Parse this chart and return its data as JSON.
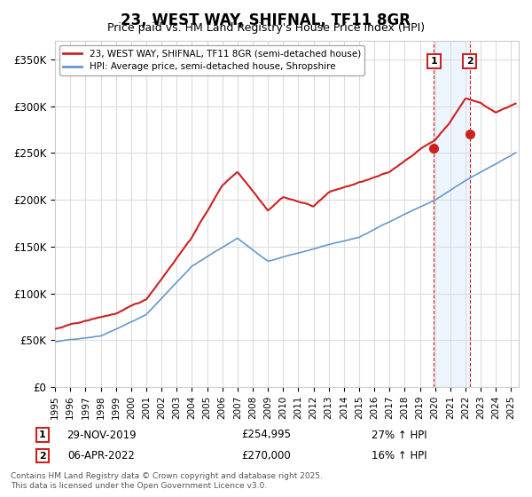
{
  "title": "23, WEST WAY, SHIFNAL, TF11 8GR",
  "subtitle": "Price paid vs. HM Land Registry's House Price Index (HPI)",
  "ylabel_ticks": [
    "£0",
    "£50K",
    "£100K",
    "£150K",
    "£200K",
    "£250K",
    "£300K",
    "£350K"
  ],
  "ytick_values": [
    0,
    50000,
    100000,
    150000,
    200000,
    250000,
    300000,
    350000
  ],
  "ylim": [
    0,
    370000
  ],
  "xlim_start": 1995.0,
  "xlim_end": 2025.5,
  "hpi_color": "#6699cc",
  "price_color": "#cc2222",
  "marker1_date": 2019.92,
  "marker1_price": 254995,
  "marker2_date": 2022.27,
  "marker2_price": 270000,
  "sale1_label": "1",
  "sale2_label": "2",
  "legend_label1": "23, WEST WAY, SHIFNAL, TF11 8GR (semi-detached house)",
  "legend_label2": "HPI: Average price, semi-detached house, Shropshire",
  "annotation1_date": "29-NOV-2019",
  "annotation1_price": "£254,995",
  "annotation1_hpi": "27% ↑ HPI",
  "annotation2_date": "06-APR-2022",
  "annotation2_price": "£270,000",
  "annotation2_hpi": "16% ↑ HPI",
  "footer": "Contains HM Land Registry data © Crown copyright and database right 2025.\nThis data is licensed under the Open Government Licence v3.0.",
  "background_color": "#ffffff",
  "grid_color": "#dddddd",
  "hpi_shaded_start": 2019.92,
  "hpi_shaded_end": 2022.27,
  "hpi_shade_color": "#ddeeff"
}
